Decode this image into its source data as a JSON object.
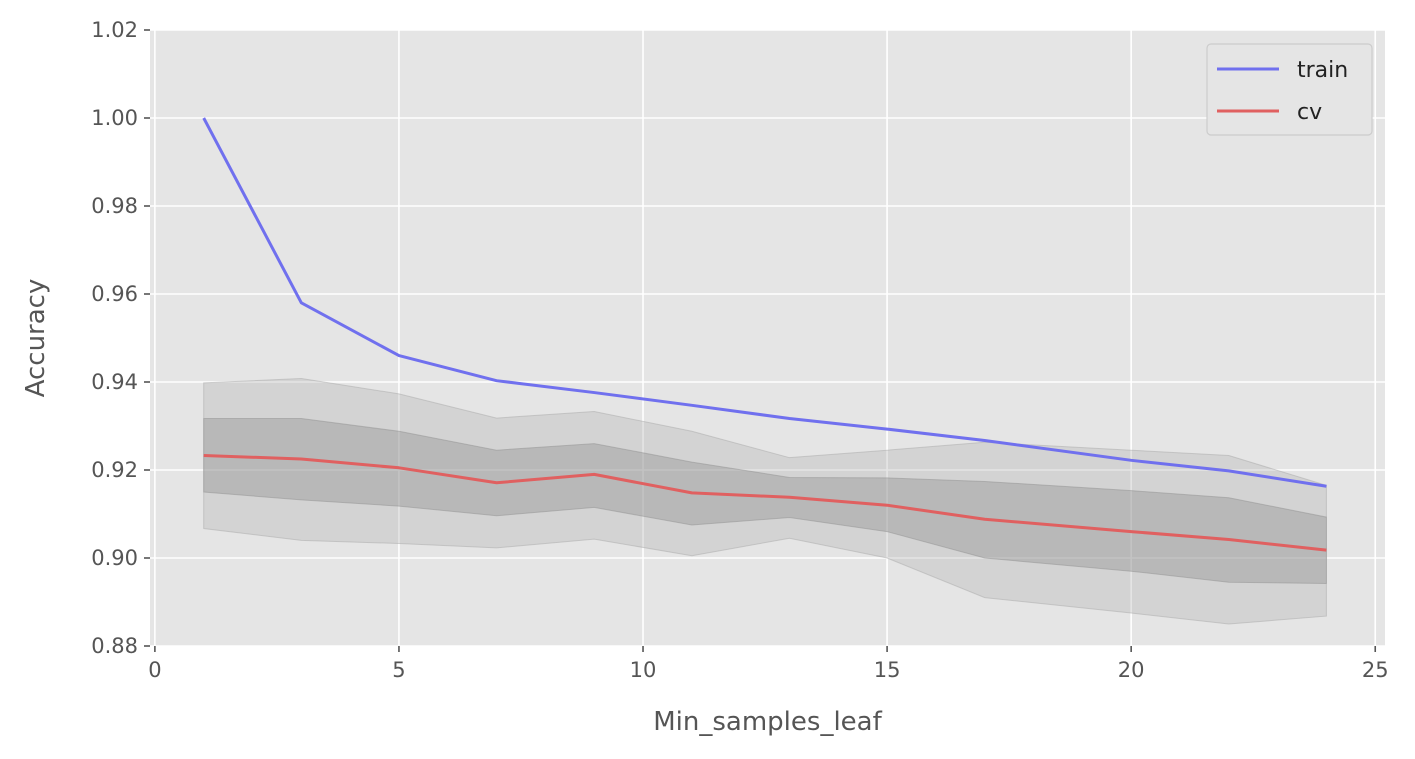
{
  "chart_data": {
    "type": "line",
    "xlabel": "Min_samples_leaf",
    "ylabel": "Accuracy",
    "xlim": [
      -0.1,
      25.2
    ],
    "ylim": [
      0.88,
      1.02
    ],
    "xticks": [
      0,
      5,
      10,
      15,
      20,
      25
    ],
    "yticks": [
      0.88,
      0.9,
      0.92,
      0.94,
      0.96,
      0.98,
      1.0,
      1.02
    ],
    "grid": true,
    "legend_position": "top-right",
    "x": [
      1,
      3,
      5,
      7,
      9,
      11,
      13,
      15,
      17,
      20,
      22,
      24
    ],
    "series": [
      {
        "name": "train",
        "color": "#7070ee",
        "values": [
          1.0,
          0.958,
          0.946,
          0.9403,
          0.9376,
          0.9347,
          0.9317,
          0.9293,
          0.9267,
          0.9222,
          0.9198,
          0.9163
        ]
      },
      {
        "name": "cv",
        "color": "#e06060",
        "values": [
          0.9233,
          0.9225,
          0.9205,
          0.9171,
          0.919,
          0.9148,
          0.9138,
          0.912,
          0.9088,
          0.906,
          0.9042,
          0.9018
        ]
      }
    ],
    "bands": [
      {
        "series": "cv",
        "level": "1std",
        "lower": [
          0.915,
          0.9132,
          0.9118,
          0.9096,
          0.9115,
          0.9075,
          0.9092,
          0.906,
          0.9,
          0.897,
          0.8945,
          0.8942
        ],
        "upper": [
          0.9317,
          0.9317,
          0.9288,
          0.9245,
          0.926,
          0.9218,
          0.9183,
          0.9182,
          0.9174,
          0.9153,
          0.9137,
          0.9093
        ],
        "color": "#888888",
        "opacity": 0.4
      },
      {
        "series": "cv",
        "level": "2std",
        "lower": [
          0.9067,
          0.904,
          0.9033,
          0.9023,
          0.9043,
          0.9005,
          0.9045,
          0.9,
          0.891,
          0.8875,
          0.885,
          0.8868
        ],
        "upper": [
          0.9398,
          0.9408,
          0.9373,
          0.9318,
          0.9333,
          0.9288,
          0.9228,
          0.9245,
          0.9263,
          0.9245,
          0.9233,
          0.9165
        ],
        "color": "#aaaaaa",
        "opacity": 0.3
      }
    ]
  }
}
